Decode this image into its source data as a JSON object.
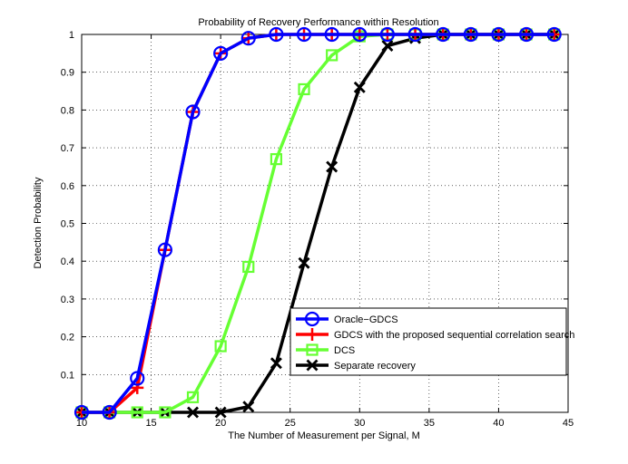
{
  "chart_data": {
    "type": "line",
    "title": "Probability of Recovery Performance within Resolution",
    "xlabel": "The Number of Measurement per Signal, M",
    "ylabel": "Detection Probability",
    "xlim": [
      10,
      45
    ],
    "ylim": [
      0,
      1
    ],
    "xticks": [
      10,
      15,
      20,
      25,
      30,
      35,
      40,
      45
    ],
    "yticks": [
      0.1,
      0.2,
      0.3,
      0.4,
      0.5,
      0.6,
      0.7,
      0.8,
      0.9,
      1
    ],
    "grid": true,
    "legend_position": "bottom-right",
    "x": [
      10,
      12,
      14,
      16,
      18,
      20,
      22,
      24,
      26,
      28,
      30,
      32,
      34,
      36,
      38,
      40,
      42,
      44
    ],
    "series": [
      {
        "name": "Oracle−GDCS",
        "color": "#0000ff",
        "marker": "circle",
        "values": [
          0,
          0,
          0.09,
          0.43,
          0.795,
          0.95,
          0.99,
          1,
          1,
          1,
          1,
          1,
          1,
          1,
          1,
          1,
          1,
          1
        ]
      },
      {
        "name": "GDCS with the proposed sequential correlation search",
        "color": "#ff0000",
        "marker": "plus",
        "values": [
          0,
          0,
          0.065,
          0.43,
          0.795,
          0.95,
          0.99,
          1,
          1,
          1,
          1,
          1,
          1,
          1,
          1,
          1,
          1,
          1
        ]
      },
      {
        "name": "DCS",
        "color": "#66ff33",
        "marker": "square",
        "values": [
          0,
          0,
          0,
          0,
          0.04,
          0.175,
          0.385,
          0.67,
          0.855,
          0.945,
          0.995,
          1,
          1,
          1,
          1,
          1,
          1,
          1
        ]
      },
      {
        "name": "Separate recovery",
        "color": "#000000",
        "marker": "x",
        "values": [
          0,
          0,
          0,
          0,
          0,
          0,
          0.015,
          0.13,
          0.395,
          0.65,
          0.86,
          0.97,
          0.99,
          1,
          1,
          1,
          1,
          1
        ]
      }
    ]
  }
}
